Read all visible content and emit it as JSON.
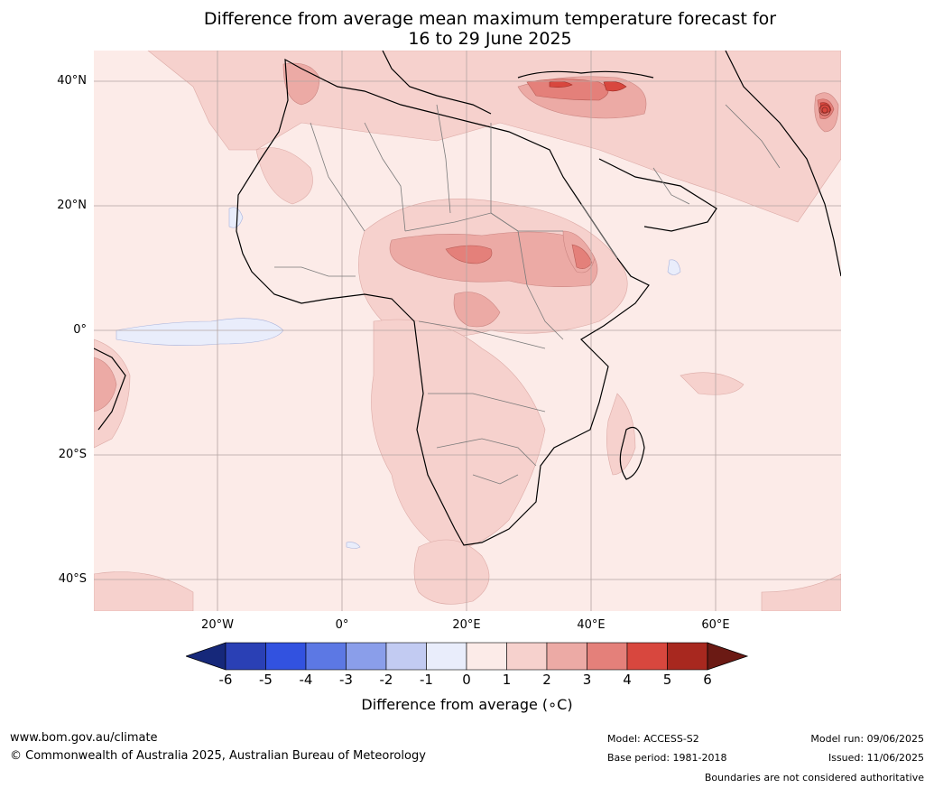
{
  "title_line1": "Difference from average mean maximum temperature forecast for",
  "title_line2": "16 to 29 June 2025",
  "lat_labels": [
    "40°N",
    "20°N",
    "0°",
    "20°S",
    "40°S"
  ],
  "lon_labels": [
    "20°W",
    "0°",
    "20°E",
    "40°E",
    "60°E"
  ],
  "colorbar": {
    "ticks": [
      "-6",
      "-5",
      "-4",
      "-3",
      "-2",
      "-1",
      "0",
      "1",
      "2",
      "3",
      "4",
      "5",
      "6"
    ],
    "colors": [
      "#16287a",
      "#2a40b5",
      "#3252e0",
      "#5c78e4",
      "#8a9eea",
      "#c2cbf2",
      "#e9edfb",
      "#fcebe8",
      "#f6d1cd",
      "#ecaaa5",
      "#e4807a",
      "#d8473e",
      "#a8281f",
      "#6b1a14"
    ],
    "label": "Difference from average (∘C)"
  },
  "footer": {
    "website": "www.bom.gov.au/climate",
    "copyright": "© Commonwealth of Australia 2025, Australian Bureau of Meteorology",
    "model": "Model: ACCESS-S2",
    "base_period": "Base period: 1981-2018",
    "model_run": "Model run: 09/06/2025",
    "issued": "Issued: 11/06/2025",
    "disclaimer": "Boundaries are not considered authoritative"
  }
}
